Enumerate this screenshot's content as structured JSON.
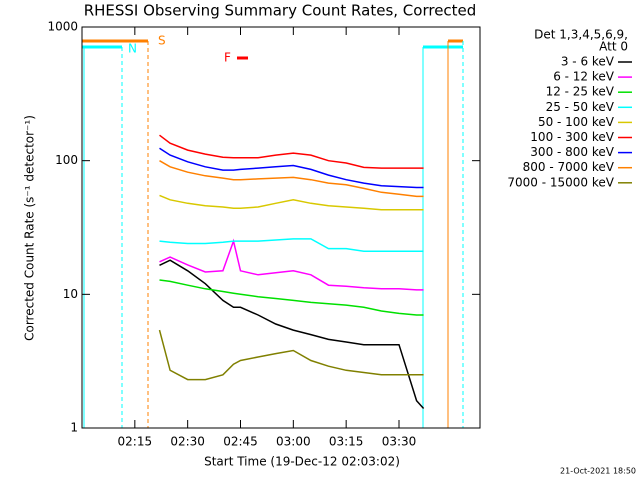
{
  "chart_data": {
    "type": "line",
    "title": "RHESSI Observing Summary Count Rates, Corrected",
    "x_label": "Start Time (19-Dec-12 02:03:02)",
    "y_label": "Corrected Count Rate (s⁻¹ detector⁻¹)",
    "legend_title": [
      "Det 1,3,4,5,6,9,",
      "Att 0"
    ],
    "annotations": [
      "S",
      "N",
      "F"
    ],
    "footer": "21-Oct-2021 18:50",
    "log_y": true,
    "xlim": [
      "02:00",
      "03:53"
    ],
    "xticks": [
      "02:15",
      "02:30",
      "02:45",
      "03:00",
      "03:15",
      "03:30"
    ],
    "ylim": [
      1,
      1000
    ],
    "yticks": [
      1,
      10,
      100,
      1000
    ],
    "x": [
      "02:22",
      "02:25",
      "02:30",
      "02:35",
      "02:40",
      "02:43",
      "02:45",
      "02:50",
      "02:55",
      "03:00",
      "03:05",
      "03:10",
      "03:15",
      "03:20",
      "03:25",
      "03:30",
      "03:35",
      "03:37"
    ],
    "series": [
      {
        "name": "3 - 6 keV",
        "color": "#000000",
        "values": [
          16.5,
          18,
          15,
          12,
          9,
          8,
          8,
          7,
          6,
          5.4,
          5,
          4.6,
          4.4,
          4.2,
          4.2,
          4.2,
          1.6,
          1.4
        ]
      },
      {
        "name": "6 - 12 keV",
        "color": "#ff00ff",
        "values": [
          17.5,
          19,
          16.6,
          14.7,
          15,
          25,
          15,
          14,
          14.5,
          15,
          14,
          11.7,
          11.5,
          11.2,
          11,
          11,
          10.8,
          10.8
        ]
      },
      {
        "name": "12 - 25 keV",
        "color": "#00e000",
        "values": [
          12.8,
          12.5,
          11.7,
          11,
          10.5,
          10.2,
          10,
          9.6,
          9.3,
          9,
          8.7,
          8.5,
          8.3,
          8,
          7.5,
          7.2,
          7,
          7
        ]
      },
      {
        "name": "25 - 50 keV",
        "color": "#00ffff",
        "values": [
          25,
          24.5,
          24,
          24,
          24.5,
          25,
          25,
          25,
          25.5,
          26,
          26,
          22,
          22,
          21,
          21,
          21,
          21,
          21
        ]
      },
      {
        "name": "50 - 100 keV",
        "color": "#d8c800",
        "values": [
          55,
          51,
          48,
          46,
          45,
          44,
          44,
          45,
          48,
          51,
          48,
          46,
          45,
          44,
          43,
          43,
          43,
          43
        ]
      },
      {
        "name": "100 - 300 keV",
        "color": "#ff0000",
        "values": [
          155,
          135,
          120,
          112,
          106,
          105,
          105,
          105,
          110,
          114,
          110,
          100,
          96,
          89,
          88,
          88,
          88,
          88
        ]
      },
      {
        "name": "300 - 800 keV",
        "color": "#0000ff",
        "values": [
          124,
          110,
          98,
          90,
          85,
          85,
          86,
          88,
          90,
          92,
          86,
          78,
          72,
          68,
          65,
          64,
          63,
          63
        ]
      },
      {
        "name": "800 - 7000 keV",
        "color": "#ff8000",
        "values": [
          100,
          90,
          82,
          77,
          74,
          72,
          72,
          73,
          74,
          75,
          72,
          68,
          66,
          62,
          58,
          56,
          54,
          54
        ]
      },
      {
        "name": "7000 - 15000 keV",
        "color": "#808000",
        "values": [
          5.4,
          2.7,
          2.3,
          2.3,
          2.5,
          3,
          3.2,
          3.4,
          3.6,
          3.8,
          3.2,
          2.9,
          2.7,
          2.6,
          2.5,
          2.5,
          2.5,
          2.5
        ]
      }
    ]
  }
}
